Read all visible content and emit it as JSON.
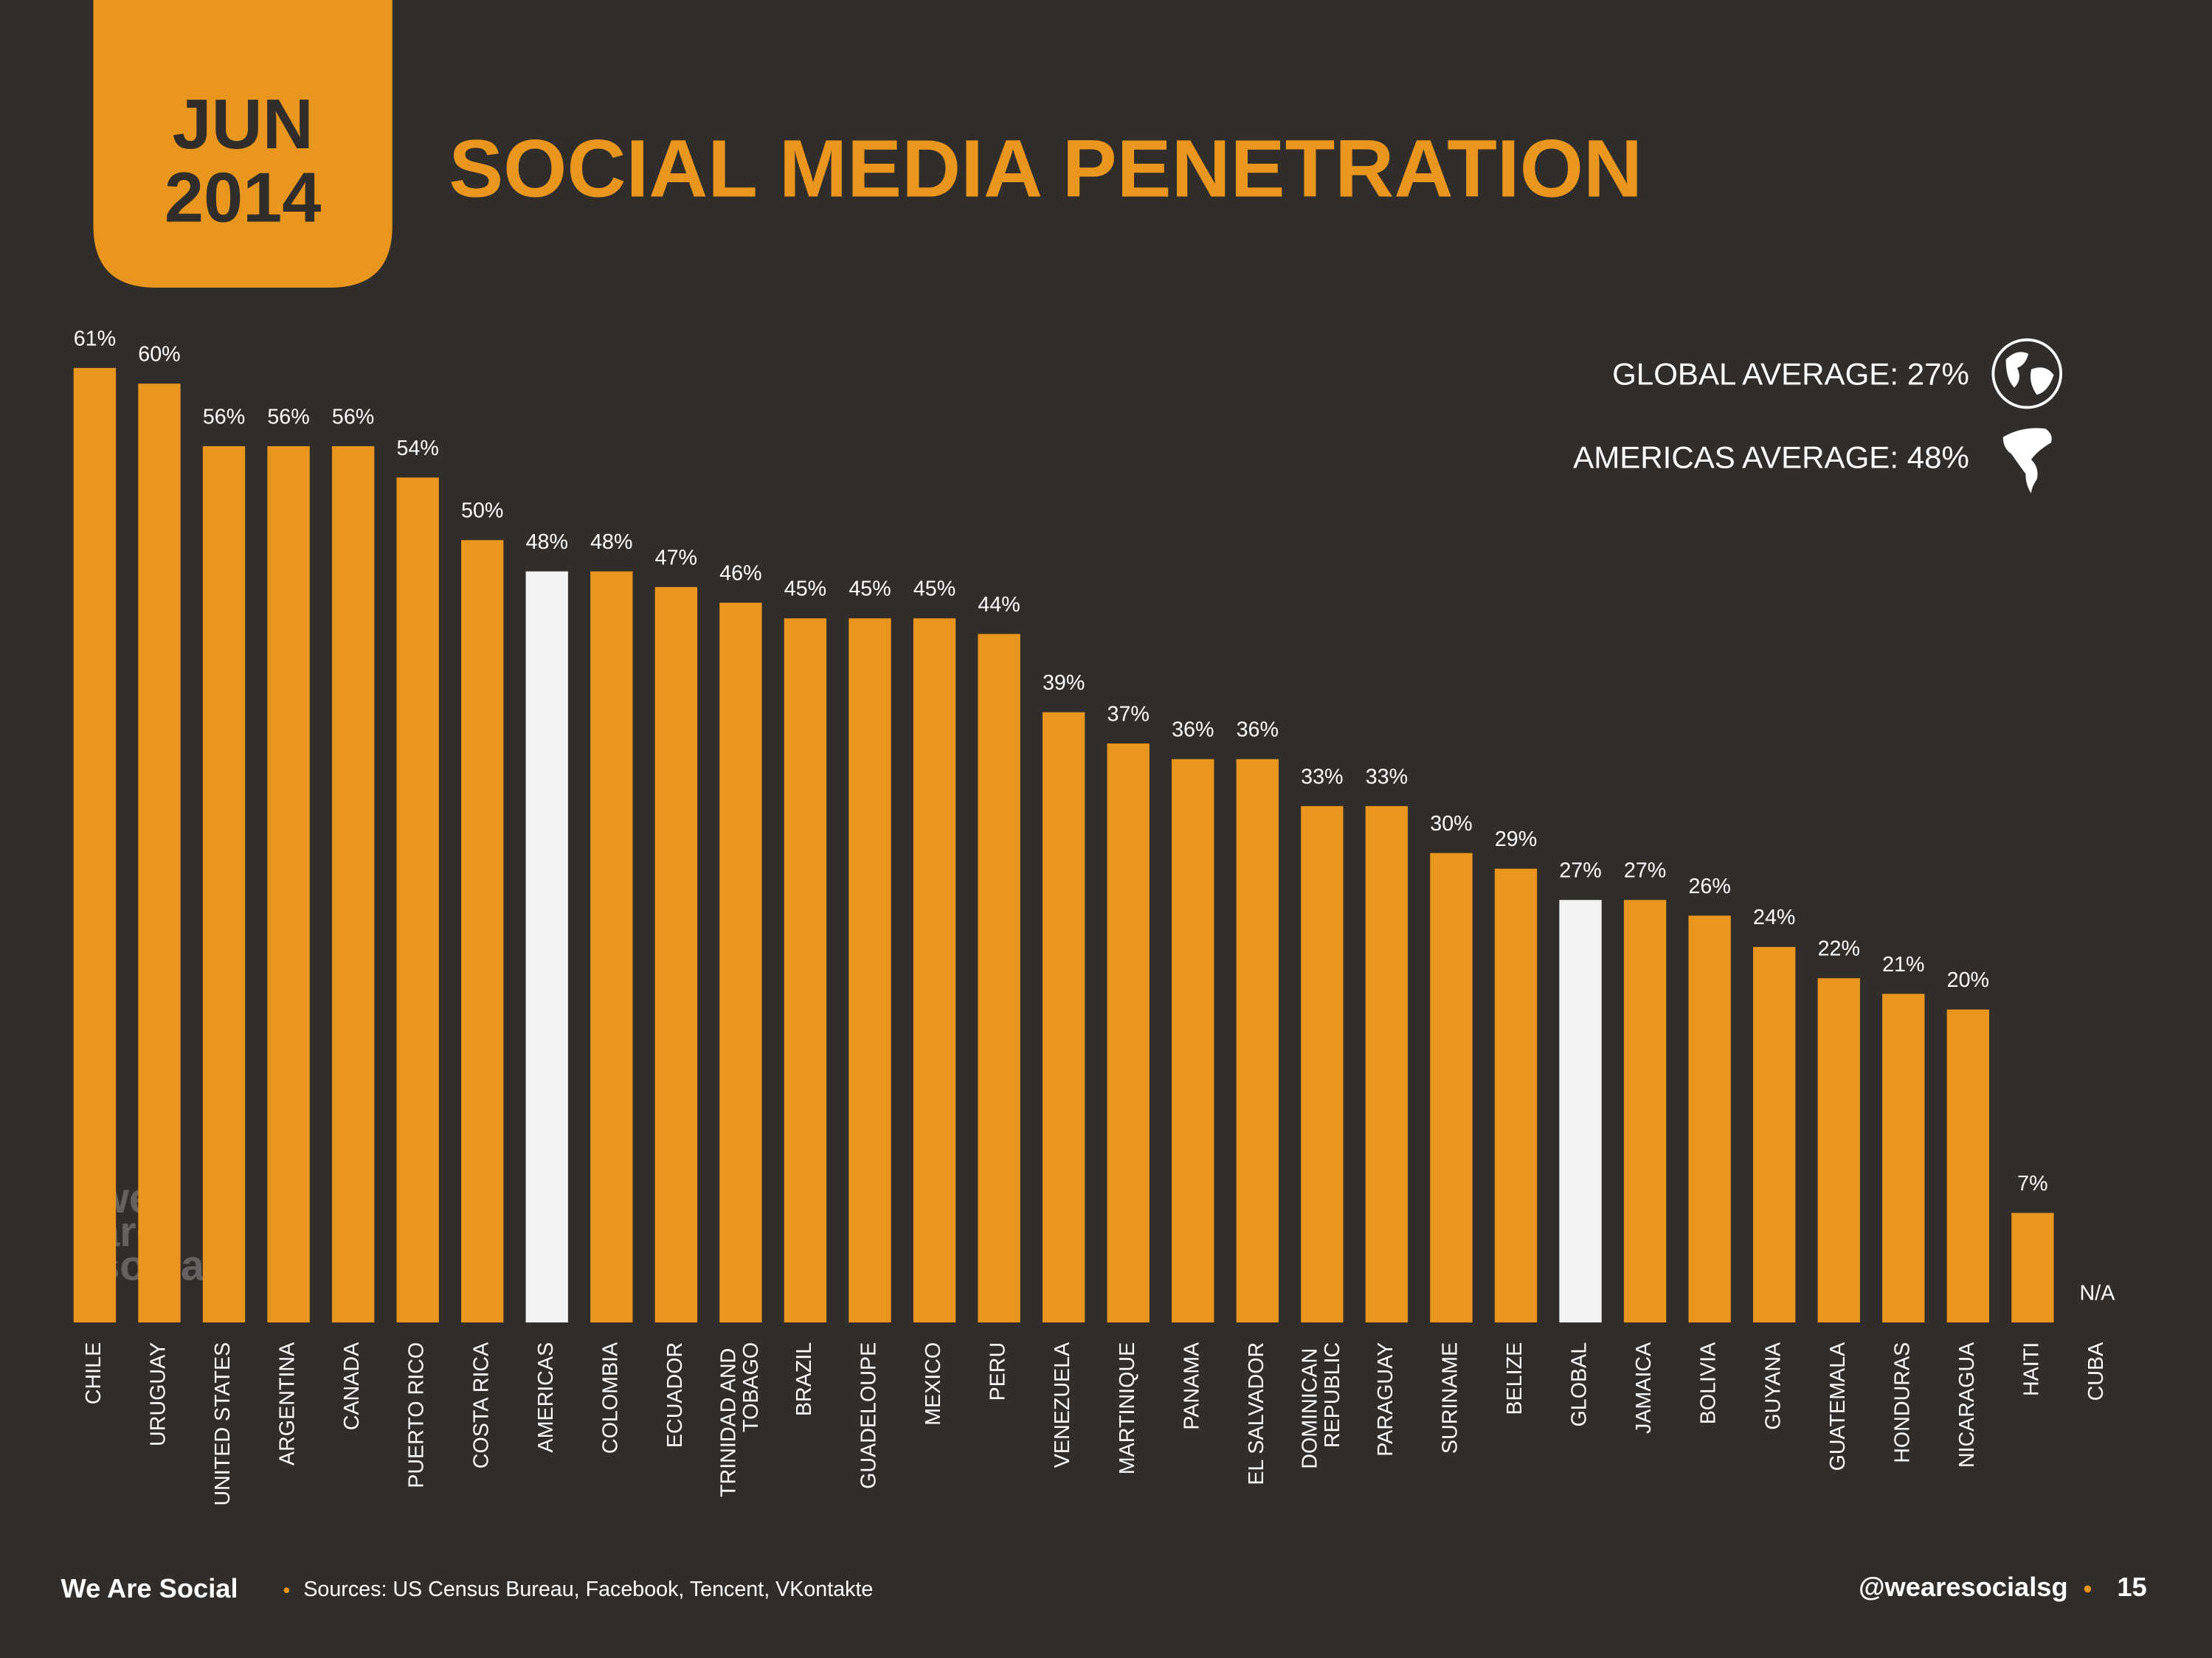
{
  "chart_data": {
    "type": "bar",
    "badge": {
      "month": "JUN",
      "year": "2014"
    },
    "title": "SOCIAL MEDIA PENETRATION",
    "annotations": [
      "GLOBAL AVERAGE: 27%",
      "AMERICAS AVERAGE: 48%"
    ],
    "categories": [
      "CHILE",
      "URUGUAY",
      "UNITED STATES",
      "ARGENTINA",
      "CANADA",
      "PUERTO RICO",
      "COSTA RICA",
      "AMERICAS",
      "COLOMBIA",
      "ECUADOR",
      "TRINIDAD AND TOBAGO",
      "BRAZIL",
      "GUADELOUPE",
      "MEXICO",
      "PERU",
      "VENEZUELA",
      "MARTINIQUE",
      "PANAMA",
      "EL SALVADOR",
      "DOMINICAN REPUBLIC",
      "PARAGUAY",
      "SURINAME",
      "BELIZE",
      "GLOBAL",
      "JAMAICA",
      "BOLIVIA",
      "GUYANA",
      "GUATEMALA",
      "HONDURAS",
      "NICARAGUA",
      "HAITI",
      "CUBA"
    ],
    "values": [
      61,
      60,
      56,
      56,
      56,
      54,
      50,
      48,
      48,
      47,
      46,
      45,
      45,
      45,
      44,
      39,
      37,
      36,
      36,
      33,
      33,
      30,
      29,
      27,
      27,
      26,
      24,
      22,
      21,
      20,
      7,
      null
    ],
    "value_labels": [
      "61%",
      "60%",
      "56%",
      "56%",
      "56%",
      "54%",
      "50%",
      "48%",
      "48%",
      "47%",
      "46%",
      "45%",
      "45%",
      "45%",
      "44%",
      "39%",
      "37%",
      "36%",
      "36%",
      "33%",
      "33%",
      "30%",
      "29%",
      "27%",
      "27%",
      "26%",
      "24%",
      "22%",
      "21%",
      "20%",
      "7%",
      "N/A"
    ],
    "colors": [
      "#e8961e",
      "#e8961e",
      "#e8961e",
      "#e8961e",
      "#e8961e",
      "#e8961e",
      "#e8961e",
      "#f2f2f2",
      "#e8961e",
      "#e8961e",
      "#e8961e",
      "#e8961e",
      "#e8961e",
      "#e8961e",
      "#e8961e",
      "#e8961e",
      "#e8961e",
      "#e8961e",
      "#e8961e",
      "#e8961e",
      "#e8961e",
      "#e8961e",
      "#e8961e",
      "#f2f2f2",
      "#e8961e",
      "#e8961e",
      "#e8961e",
      "#e8961e",
      "#e8961e",
      "#e8961e",
      "#e8961e",
      "#e8961e"
    ],
    "ylim": [
      0,
      61
    ],
    "watermark": [
      "we",
      "are",
      "social"
    ],
    "footer": {
      "brand": "We Are Social",
      "sources": "Sources: US Census Bureau, Facebook, Tencent, VKontakte",
      "handle": "@wearesocialsg",
      "page": "15"
    }
  }
}
